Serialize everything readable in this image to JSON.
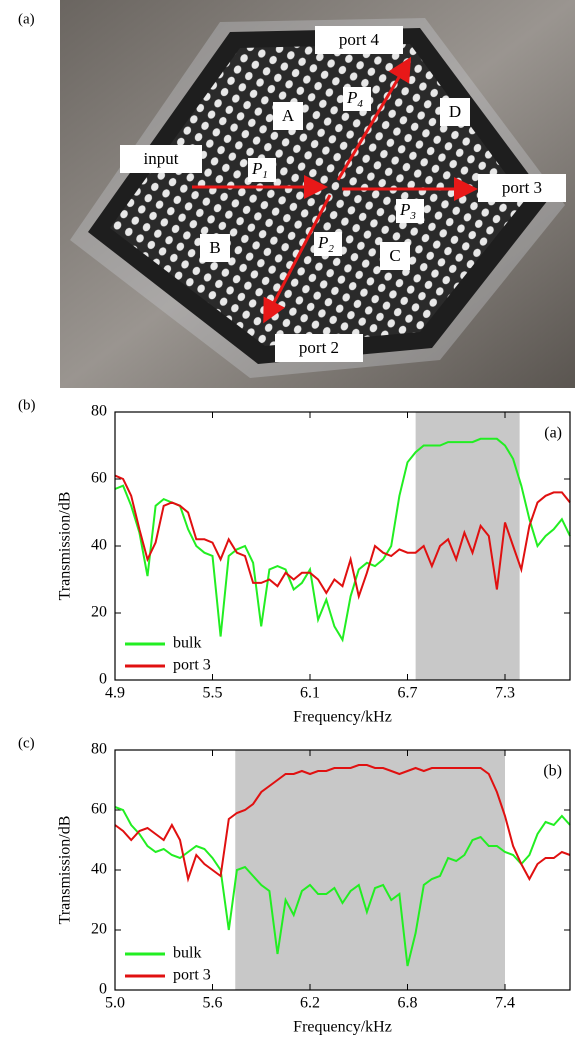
{
  "photo": {
    "panel_label": "(a)",
    "input": "input",
    "port4": "port 4",
    "port3": "port 3",
    "port2": "port 2",
    "A": "A",
    "B": "B",
    "C": "C",
    "D": "D",
    "p1": {
      "base": "P",
      "sub": "1"
    },
    "p2": {
      "base": "P",
      "sub": "2"
    },
    "p3": {
      "base": "P",
      "sub": "3"
    },
    "p4": {
      "base": "P",
      "sub": "4"
    }
  },
  "chart_data": [
    {
      "type": "line",
      "panel_label": "(b)",
      "inner_label": "(a)",
      "xlabel": "Frequency/kHz",
      "ylabel": "Transmission/dB",
      "xlim": [
        4.9,
        7.7
      ],
      "xticks": [
        4.9,
        5.5,
        6.1,
        6.7,
        7.3
      ],
      "ylim": [
        0,
        80
      ],
      "yticks": [
        0,
        20,
        40,
        60,
        80
      ],
      "shaded_region": [
        6.75,
        7.39
      ],
      "legend": "lower left",
      "x": [
        4.9,
        4.95,
        5,
        5.05,
        5.1,
        5.15,
        5.2,
        5.25,
        5.3,
        5.35,
        5.4,
        5.45,
        5.5,
        5.55,
        5.6,
        5.65,
        5.7,
        5.75,
        5.8,
        5.85,
        5.9,
        5.95,
        6,
        6.05,
        6.1,
        6.15,
        6.2,
        6.25,
        6.3,
        6.35,
        6.4,
        6.45,
        6.5,
        6.55,
        6.6,
        6.65,
        6.7,
        6.75,
        6.8,
        6.85,
        6.9,
        6.95,
        7,
        7.05,
        7.1,
        7.15,
        7.2,
        7.25,
        7.3,
        7.35,
        7.4,
        7.45,
        7.5,
        7.55,
        7.6,
        7.65,
        7.7
      ],
      "series": [
        {
          "name": "bulk",
          "color": "#22ee22",
          "values": [
            57,
            58,
            52,
            44,
            31,
            52,
            54,
            53,
            52,
            45,
            40,
            38,
            37,
            13,
            37,
            39,
            40,
            35,
            16,
            33,
            34,
            33,
            27,
            29,
            33,
            18,
            24,
            16,
            12,
            25,
            33,
            35,
            34,
            36,
            40,
            55,
            65,
            68,
            70,
            70,
            70,
            71,
            71,
            71,
            71,
            72,
            72,
            72,
            70,
            66,
            58,
            48,
            40,
            43,
            45,
            48,
            43
          ]
        },
        {
          "name": "port 3",
          "color": "#e01010",
          "values": [
            61,
            60,
            55,
            45,
            36,
            41,
            52,
            53,
            52,
            50,
            42,
            42,
            41,
            36,
            42,
            38,
            37,
            29,
            29,
            30,
            28,
            32,
            30,
            32,
            32,
            30,
            26,
            30,
            28,
            36,
            25,
            32,
            40,
            38,
            37,
            39,
            38,
            38,
            40,
            34,
            40,
            42,
            36,
            44,
            38,
            46,
            43,
            27,
            47,
            40,
            33,
            46,
            53,
            55,
            56,
            56,
            53
          ]
        }
      ]
    },
    {
      "type": "line",
      "panel_label": "(c)",
      "inner_label": "(b)",
      "xlabel": "Frequency/kHz",
      "ylabel": "Transmission/dB",
      "xlim": [
        5,
        7.8
      ],
      "xticks": [
        {
          "value": 5,
          "label": "5.0"
        },
        5.6,
        6.2,
        6.8,
        7.4
      ],
      "ylim": [
        0,
        80
      ],
      "yticks": [
        0,
        20,
        40,
        60,
        80
      ],
      "shaded_region": [
        5.74,
        7.4
      ],
      "legend": "lower left",
      "x": [
        5,
        5.05,
        5.1,
        5.15,
        5.2,
        5.25,
        5.3,
        5.35,
        5.4,
        5.45,
        5.5,
        5.55,
        5.6,
        5.65,
        5.7,
        5.75,
        5.8,
        5.85,
        5.9,
        5.95,
        6,
        6.05,
        6.1,
        6.15,
        6.2,
        6.25,
        6.3,
        6.35,
        6.4,
        6.45,
        6.5,
        6.55,
        6.6,
        6.65,
        6.7,
        6.75,
        6.8,
        6.85,
        6.9,
        6.95,
        7,
        7.05,
        7.1,
        7.15,
        7.2,
        7.25,
        7.3,
        7.35,
        7.4,
        7.45,
        7.5,
        7.55,
        7.6,
        7.65,
        7.7,
        7.75,
        7.8
      ],
      "series": [
        {
          "name": "bulk",
          "color": "#22ee22",
          "values": [
            61,
            60,
            55,
            52,
            48,
            46,
            47,
            45,
            44,
            46,
            48,
            47,
            44,
            40,
            20,
            40,
            41,
            38,
            35,
            33,
            12,
            30,
            25,
            33,
            35,
            32,
            32,
            34,
            29,
            33,
            35,
            26,
            34,
            35,
            30,
            32,
            8,
            19,
            35,
            37,
            38,
            44,
            43,
            45,
            50,
            51,
            48,
            48,
            46,
            45,
            42,
            45,
            52,
            56,
            55,
            58,
            55
          ]
        },
        {
          "name": "port 3",
          "color": "#e01010",
          "values": [
            55,
            53,
            50,
            53,
            54,
            52,
            50,
            55,
            50,
            37,
            45,
            42,
            40,
            38,
            57,
            59,
            60,
            62,
            66,
            68,
            70,
            72,
            72,
            73,
            72,
            73,
            73,
            74,
            74,
            74,
            75,
            75,
            74,
            74,
            73,
            72,
            73,
            74,
            73,
            74,
            74,
            74,
            74,
            74,
            74,
            74,
            72,
            66,
            58,
            48,
            42,
            37,
            42,
            44,
            44,
            46,
            45
          ]
        }
      ]
    }
  ]
}
